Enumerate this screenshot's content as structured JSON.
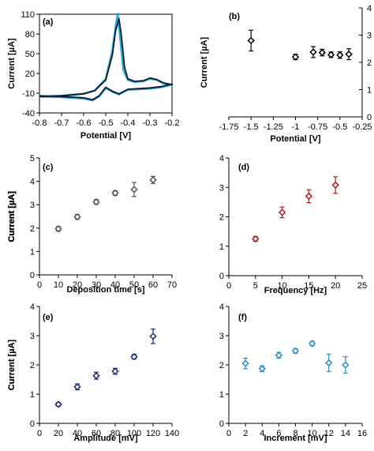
{
  "chart_data": [
    {
      "panel": "(a)",
      "type": "line",
      "xlabel": "Potential [V]",
      "ylabel": "Current [µA]",
      "xlim": [
        -0.8,
        -0.2
      ],
      "ylim": [
        -40,
        110
      ],
      "xticks": [
        -0.8,
        -0.7,
        -0.6,
        -0.5,
        -0.4,
        -0.3,
        -0.2
      ],
      "yticks": [
        -40,
        -10,
        20,
        50,
        80,
        110
      ],
      "xtick_labels": [
        "-0.8",
        "-0.7",
        "-0.6",
        "-0.5",
        "-0.4",
        "-0.3",
        "-0.2"
      ],
      "ytick_labels": [
        "-40",
        "-10",
        "20",
        "50",
        "80",
        "110"
      ],
      "grid": false,
      "series": [
        {
          "color": "#29a9e0",
          "forward_x": [
            -0.8,
            -0.7,
            -0.6,
            -0.55,
            -0.5,
            -0.47,
            -0.455,
            -0.445,
            -0.435,
            -0.42,
            -0.4,
            -0.37,
            -0.33,
            -0.3,
            -0.27,
            -0.24,
            -0.2
          ],
          "forward_y": [
            -15,
            -14,
            -11,
            -6,
            12,
            55,
            92,
            111,
            75,
            25,
            10,
            7,
            8,
            12,
            10,
            5,
            2
          ],
          "reverse_x": [
            -0.2,
            -0.25,
            -0.3,
            -0.35,
            -0.4,
            -0.44,
            -0.47,
            -0.5,
            -0.53,
            -0.56,
            -0.6,
            -0.7,
            -0.8
          ],
          "reverse_y": [
            3,
            -1,
            -3,
            -4,
            -5,
            -12,
            -8,
            -2,
            -15,
            -21,
            -18,
            -16,
            -15
          ]
        },
        {
          "color": "#0a1a2a",
          "forward_x": [
            -0.8,
            -0.7,
            -0.6,
            -0.55,
            -0.5,
            -0.47,
            -0.455,
            -0.44,
            -0.43,
            -0.415,
            -0.4,
            -0.37,
            -0.33,
            -0.3,
            -0.27,
            -0.24,
            -0.2
          ],
          "forward_y": [
            -15,
            -14,
            -11,
            -6,
            10,
            48,
            85,
            103,
            80,
            30,
            12,
            8,
            9,
            13,
            11,
            6,
            3
          ],
          "reverse_x": [
            -0.2,
            -0.25,
            -0.3,
            -0.35,
            -0.4,
            -0.44,
            -0.47,
            -0.5,
            -0.53,
            -0.56,
            -0.6,
            -0.7,
            -0.8
          ],
          "reverse_y": [
            4,
            0,
            -2,
            -3,
            -4,
            -11,
            -7,
            -1,
            -14,
            -20,
            -17,
            -15,
            -14
          ]
        }
      ]
    },
    {
      "panel": "(b)",
      "type": "scatter",
      "xlabel": "Potential [V]",
      "ylabel": "Current [µA]",
      "xlim": [
        -1.75,
        -0.25
      ],
      "ylim": [
        0,
        4
      ],
      "xticks": [
        -1.75,
        -1.5,
        -1.25,
        -1,
        -0.75,
        -0.5,
        -0.25
      ],
      "yticks": [
        0,
        1,
        2,
        3,
        4
      ],
      "xtick_labels": [
        "-1.75",
        "-1.5",
        "-1.25",
        "-1",
        "-0.75",
        "-0.5",
        "-0.25"
      ],
      "ytick_labels": [
        "0",
        "1",
        "2",
        "3",
        "4"
      ],
      "marker_color": "#000000",
      "x": [
        -1.5,
        -1.0,
        -0.8,
        -0.7,
        -0.6,
        -0.5,
        -0.4
      ],
      "y": [
        2.8,
        2.2,
        2.38,
        2.36,
        2.28,
        2.27,
        2.3
      ],
      "err": [
        0.38,
        0.1,
        0.2,
        0.12,
        0.1,
        0.12,
        0.2
      ]
    },
    {
      "panel": "(c)",
      "type": "scatter",
      "xlabel": "Deposition time [s]",
      "ylabel": "Current [µA]",
      "xlim": [
        0,
        70
      ],
      "ylim": [
        0,
        5
      ],
      "xticks": [
        0,
        10,
        20,
        30,
        40,
        50,
        60,
        70
      ],
      "yticks": [
        0,
        1,
        2,
        3,
        4,
        5
      ],
      "xtick_labels": [
        "0",
        "10",
        "20",
        "30",
        "40",
        "50",
        "60",
        "70"
      ],
      "ytick_labels": [
        "0",
        "1",
        "2",
        "3",
        "4",
        "5"
      ],
      "marker_color": "#555555",
      "x": [
        10,
        20,
        30,
        40,
        50,
        60
      ],
      "y": [
        1.97,
        2.48,
        3.12,
        3.5,
        3.65,
        4.06
      ],
      "err": [
        0.1,
        0.1,
        0.1,
        0.1,
        0.3,
        0.15
      ]
    },
    {
      "panel": "(d)",
      "type": "scatter",
      "xlabel": "Frequency [Hz]",
      "ylabel": "Current [µA]",
      "xlim": [
        0,
        25
      ],
      "ylim": [
        0,
        4
      ],
      "xticks": [
        0,
        5,
        10,
        15,
        20,
        25
      ],
      "yticks": [
        0,
        1,
        2,
        3,
        4
      ],
      "xtick_labels": [
        "0",
        "5",
        "10",
        "15",
        "20",
        "25"
      ],
      "ytick_labels": [
        "0",
        "1",
        "2",
        "3",
        "4"
      ],
      "marker_color": "#c0141b",
      "x": [
        5,
        10,
        15,
        20
      ],
      "y": [
        1.25,
        2.15,
        2.7,
        3.08
      ],
      "err": [
        0.08,
        0.18,
        0.22,
        0.28
      ]
    },
    {
      "panel": "(e)",
      "type": "scatter",
      "xlabel": "Amplitude [mV]",
      "ylabel": "Current [µA]",
      "xlim": [
        0,
        140
      ],
      "ylim": [
        0,
        4
      ],
      "xticks": [
        0,
        20,
        40,
        60,
        80,
        100,
        120,
        140
      ],
      "yticks": [
        0,
        1,
        2,
        3,
        4
      ],
      "xtick_labels": [
        "0",
        "20",
        "40",
        "60",
        "80",
        "100",
        "120",
        "140"
      ],
      "ytick_labels": [
        "0",
        "1",
        "2",
        "3",
        "4"
      ],
      "marker_color": "#1a2a6c",
      "x": [
        20,
        40,
        60,
        80,
        100,
        120
      ],
      "y": [
        0.65,
        1.25,
        1.63,
        1.78,
        2.28,
        2.98
      ],
      "err": [
        0.06,
        0.1,
        0.12,
        0.1,
        0.08,
        0.25
      ]
    },
    {
      "panel": "(f)",
      "type": "scatter",
      "xlabel": "Increment [mV]",
      "ylabel": "Current [µA]",
      "xlim": [
        0,
        16
      ],
      "ylim": [
        0,
        4
      ],
      "xticks": [
        0,
        2,
        4,
        6,
        8,
        10,
        12,
        14,
        16
      ],
      "yticks": [
        0,
        1,
        2,
        3,
        4
      ],
      "xtick_labels": [
        "0",
        "2",
        "4",
        "6",
        "8",
        "10",
        "12",
        "14",
        "16"
      ],
      "ytick_labels": [
        "0",
        "1",
        "2",
        "3",
        "4"
      ],
      "marker_color": "#2a8ccc",
      "x": [
        2,
        4,
        6,
        8,
        10,
        12,
        14
      ],
      "y": [
        2.05,
        1.87,
        2.33,
        2.48,
        2.73,
        2.07,
        2.0
      ],
      "err": [
        0.18,
        0.1,
        0.1,
        0.08,
        0.08,
        0.3,
        0.28
      ]
    }
  ]
}
